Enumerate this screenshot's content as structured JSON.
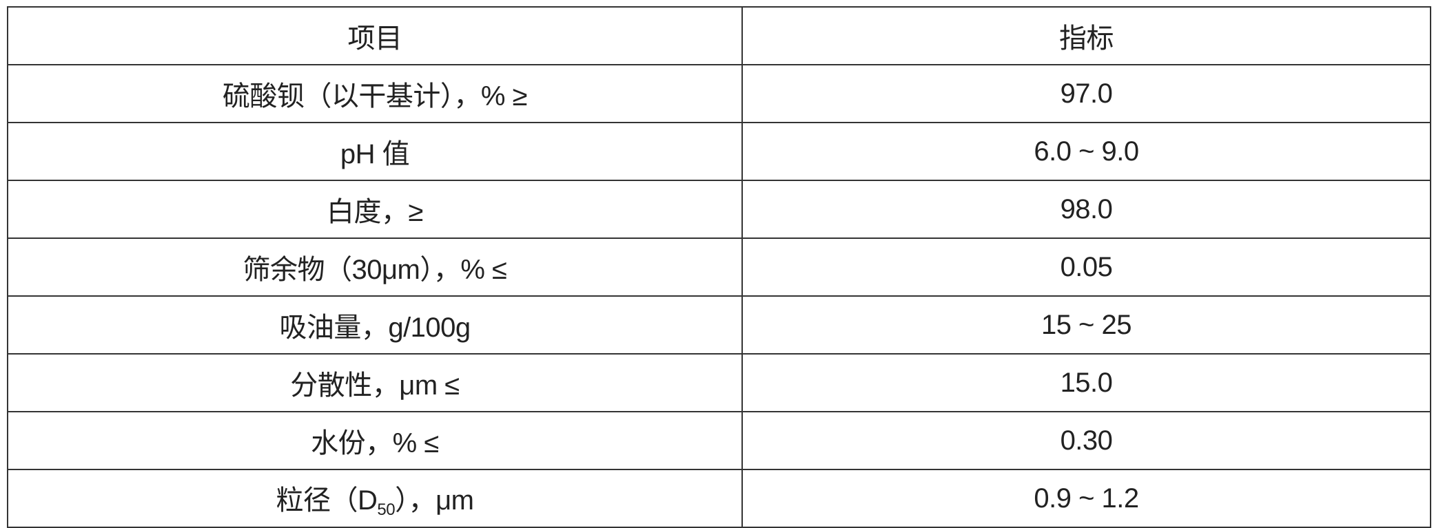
{
  "table": {
    "headers": [
      "项目",
      "指标"
    ],
    "rows": [
      {
        "item": "硫酸钡（以干基计），% ≥",
        "value": "97.0"
      },
      {
        "item": "pH 值",
        "value": "6.0 ~ 9.0"
      },
      {
        "item": "白度，≥",
        "value": "98.0"
      },
      {
        "item": "筛余物（30μm），% ≤",
        "value": "0.05"
      },
      {
        "item": "吸油量，g/100g",
        "value": "15 ~ 25"
      },
      {
        "item": "分散性，μm ≤",
        "value": "15.0"
      },
      {
        "item": "水份，% ≤",
        "value": "0.30"
      },
      {
        "item_prefix": "粒径（D",
        "item_sub": "50",
        "item_suffix": "），μm",
        "value": "0.9 ~ 1.2"
      }
    ]
  }
}
